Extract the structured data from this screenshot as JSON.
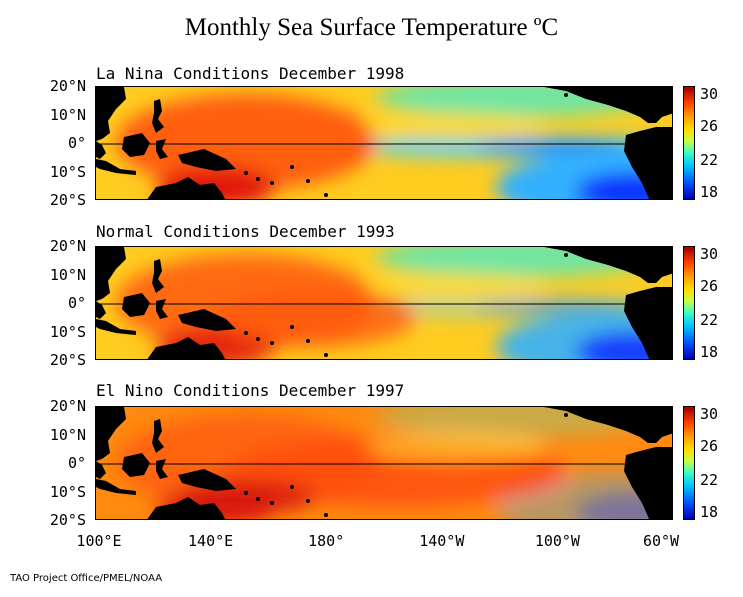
{
  "title": "Monthly Sea Surface Temperature ºC",
  "panels": [
    {
      "name": "La Nina Conditions",
      "date": "December 1998",
      "state": "la-nina"
    },
    {
      "name": "Normal Conditions",
      "date": "December 1993",
      "state": "normal"
    },
    {
      "name": "El Nino Conditions",
      "date": "December 1997",
      "state": "el-nino"
    }
  ],
  "lat_labels": [
    "20°N",
    "10°N",
    "0°",
    "10°S",
    "20°S"
  ],
  "lon_labels": [
    "100°E",
    "140°E",
    "180°",
    "140°W",
    "100°W",
    "60°W"
  ],
  "colorbar_labels": [
    "30",
    "26",
    "22",
    "18"
  ],
  "colorbar_range": [
    18,
    31
  ],
  "credit": "TAO Project Office/PMEL/NOAA",
  "colors": {
    "land": "#000000",
    "warm": "#e84010",
    "hot": "#c81010",
    "mid": "#ffd020",
    "cool": "#40e0c0",
    "cold": "#1040ff"
  }
}
